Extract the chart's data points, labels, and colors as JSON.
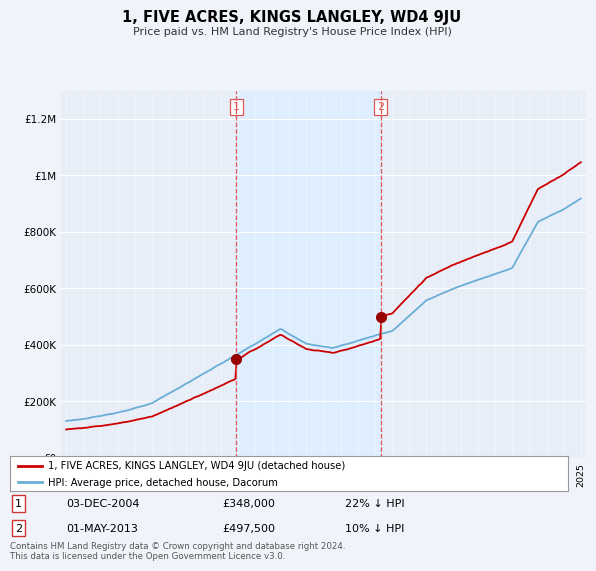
{
  "title": "1, FIVE ACRES, KINGS LANGLEY, WD4 9JU",
  "subtitle": "Price paid vs. HM Land Registry's House Price Index (HPI)",
  "sale1_date": "03-DEC-2004",
  "sale1_price": 348000,
  "sale1_pct": "22%",
  "sale2_date": "01-MAY-2013",
  "sale2_price": 497500,
  "sale2_pct": "10%",
  "hpi_color": "#6aaed6",
  "price_color": "#cc0000",
  "vline_color": "#e05555",
  "dot_color": "#990000",
  "shade_color": "#ddeeff",
  "legend_label_price": "1, FIVE ACRES, KINGS LANGLEY, WD4 9JU (detached house)",
  "legend_label_hpi": "HPI: Average price, detached house, Dacorum",
  "footer": "Contains HM Land Registry data © Crown copyright and database right 2024.\nThis data is licensed under the Open Government Licence v3.0.",
  "ylim_min": 0,
  "ylim_max": 1300000,
  "background_color": "#f0f4fa",
  "plot_bg_color": "#e8eef8"
}
